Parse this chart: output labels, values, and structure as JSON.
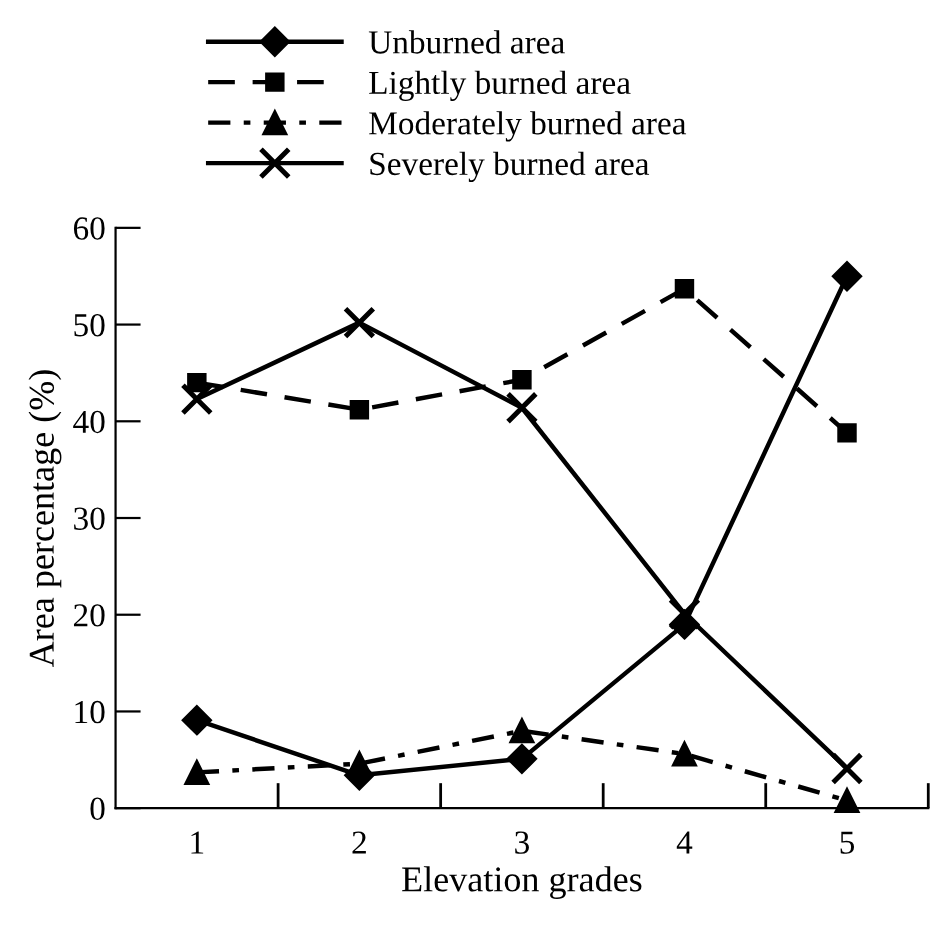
{
  "chart_data": {
    "type": "line",
    "xlabel": "Elevation grades",
    "ylabel": "Area percentage (%)",
    "categories": [
      "1",
      "2",
      "3",
      "4",
      "5"
    ],
    "ylim": [
      0,
      60
    ],
    "yticks": [
      0,
      10,
      20,
      30,
      40,
      50,
      60
    ],
    "grid": false,
    "legend": "top",
    "series": [
      {
        "name": "Unburned area",
        "color": "#000000",
        "marker": "diamond",
        "line_style": "solid",
        "values": [
          9.1,
          3.4,
          5.1,
          19.0,
          55.0
        ]
      },
      {
        "name": "Lightly burned area",
        "color": "#000000",
        "marker": "square",
        "line_style": "dashed",
        "values": [
          44.0,
          41.2,
          44.3,
          53.7,
          38.8
        ]
      },
      {
        "name": "Moderately burned area",
        "color": "#000000",
        "marker": "triangle",
        "line_style": "dotted",
        "values": [
          3.7,
          4.6,
          8.0,
          5.6,
          0.8
        ]
      },
      {
        "name": "Severely burned area",
        "color": "#000000",
        "marker": "cross",
        "line_style": "solid",
        "values": [
          42.3,
          50.2,
          41.4,
          20.1,
          4.1
        ]
      }
    ]
  }
}
